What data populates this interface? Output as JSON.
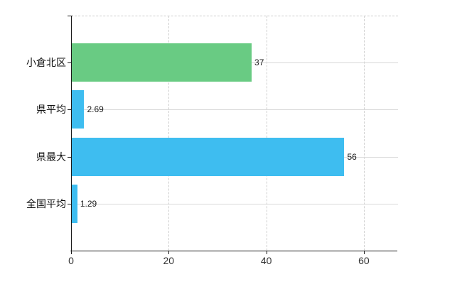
{
  "chart_data": {
    "type": "bar",
    "orientation": "horizontal",
    "title": "",
    "categories": [
      "小倉北区",
      "県平均",
      "県最大",
      "全国平均"
    ],
    "values": [
      37,
      2.69,
      56,
      1.29
    ],
    "value_labels": [
      "37",
      "2.69",
      "56",
      "1.29"
    ],
    "bar_colors": [
      "#69cb83",
      "#3ebdf0",
      "#3ebdf0",
      "#3ebdf0"
    ],
    "x_ticks": [
      "0",
      "20",
      "40",
      "60"
    ],
    "x_tick_values": [
      0,
      20,
      40,
      60
    ],
    "xlim": [
      0,
      67
    ],
    "grid": true,
    "legend": "none",
    "colors": {
      "highlight_bar": "#69cb83",
      "comparison_bar": "#3ebdf0",
      "axis": "#1a1a1a",
      "gridline": "#d9d9d9",
      "background": "#ffffff",
      "label_text": "#111111"
    }
  }
}
